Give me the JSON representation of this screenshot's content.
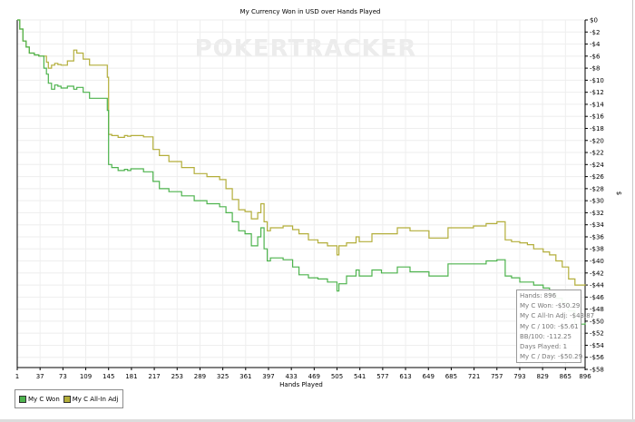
{
  "chart_data": {
    "type": "line",
    "title": "My Currency Won in USD over Hands Played",
    "xlabel": "Hands Played",
    "ylabel": "$",
    "watermark": "POKERTRACKER",
    "xlim": [
      1,
      896
    ],
    "ylim": [
      -59,
      0
    ],
    "x_ticks": [
      1,
      37,
      73,
      109,
      145,
      181,
      217,
      253,
      289,
      325,
      361,
      397,
      433,
      469,
      505,
      541,
      577,
      613,
      649,
      685,
      721,
      757,
      793,
      829,
      865,
      896
    ],
    "y_ticks": [
      0,
      -2,
      -4,
      -6,
      -8,
      -10,
      -12,
      -14,
      -16,
      -18,
      -20,
      -22,
      -24,
      -26,
      -28,
      -30,
      -32,
      -34,
      -36,
      -38,
      -40,
      -42,
      -44,
      -46,
      -48,
      -50,
      -52,
      -54,
      -56,
      -58
    ],
    "y_tick_prefix": "$",
    "grid": true,
    "legend_position": "bottom-left",
    "series": [
      {
        "name": "My C Won",
        "color": "#4db34d",
        "x": [
          1,
          5,
          10,
          15,
          20,
          28,
          35,
          43,
          47,
          50,
          55,
          60,
          65,
          70,
          80,
          90,
          95,
          105,
          115,
          143,
          145,
          150,
          160,
          170,
          175,
          180,
          200,
          215,
          225,
          240,
          260,
          280,
          300,
          320,
          330,
          340,
          350,
          360,
          370,
          380,
          385,
          390,
          395,
          400,
          420,
          435,
          445,
          460,
          475,
          490,
          505,
          508,
          520,
          535,
          540,
          560,
          575,
          600,
          620,
          650,
          680,
          700,
          720,
          740,
          757,
          770,
          780,
          793,
          805,
          815,
          830,
          840,
          850,
          860,
          870,
          880,
          896
        ],
        "y": [
          0,
          -1.5,
          -3.5,
          -4.5,
          -5.5,
          -5.8,
          -6,
          -8,
          -9,
          -10.5,
          -11.5,
          -10.8,
          -11,
          -11.3,
          -11,
          -11.5,
          -11.2,
          -12,
          -13,
          -15,
          -24,
          -24.5,
          -25,
          -24.8,
          -25,
          -24.7,
          -25.2,
          -26.8,
          -28,
          -28.5,
          -29.2,
          -30,
          -30.5,
          -31,
          -32,
          -33.5,
          -35,
          -35.5,
          -37.5,
          -36,
          -34.5,
          -38,
          -40,
          -39.5,
          -39.8,
          -41,
          -42.3,
          -42.8,
          -43,
          -43.5,
          -45,
          -43.8,
          -42.5,
          -41.5,
          -42.5,
          -41.5,
          -42,
          -41,
          -41.8,
          -42.5,
          -40.5,
          -40.5,
          -40.5,
          -40,
          -39.8,
          -42.5,
          -42.8,
          -43.5,
          -43.5,
          -44,
          -44.5,
          -45.5,
          -46.2,
          -47,
          -48.3,
          -50.5,
          -50.29
        ]
      },
      {
        "name": "My C All-In Adj",
        "color": "#b3ae3a",
        "x": [
          1,
          5,
          10,
          15,
          20,
          28,
          35,
          43,
          47,
          50,
          55,
          60,
          65,
          70,
          80,
          90,
          95,
          105,
          115,
          143,
          145,
          150,
          160,
          170,
          175,
          180,
          200,
          215,
          225,
          240,
          260,
          280,
          300,
          320,
          330,
          340,
          350,
          360,
          370,
          380,
          385,
          390,
          395,
          400,
          420,
          435,
          445,
          460,
          475,
          490,
          505,
          508,
          520,
          535,
          540,
          560,
          575,
          600,
          620,
          650,
          680,
          700,
          720,
          740,
          757,
          770,
          780,
          793,
          805,
          815,
          830,
          840,
          850,
          860,
          870,
          880,
          896
        ],
        "y": [
          0,
          -1.5,
          -3.5,
          -4.5,
          -5.5,
          -5.8,
          -6,
          -6,
          -7,
          -8,
          -7.5,
          -7.2,
          -7.4,
          -7.5,
          -6.8,
          -5,
          -5.5,
          -6.5,
          -7.5,
          -9.5,
          -19,
          -19.2,
          -19.5,
          -19.2,
          -19.3,
          -19.2,
          -19.4,
          -21.5,
          -22.5,
          -23.5,
          -24.5,
          -25.5,
          -26,
          -26.5,
          -28,
          -29.8,
          -31.5,
          -31.8,
          -33,
          -32,
          -30.5,
          -33.5,
          -35,
          -34.5,
          -34.2,
          -34.8,
          -35.5,
          -36.5,
          -37,
          -37.5,
          -39,
          -37.5,
          -37,
          -36,
          -36.8,
          -35.5,
          -35.5,
          -34.5,
          -35,
          -36.2,
          -34.5,
          -34.5,
          -34.2,
          -33.8,
          -33.5,
          -36.5,
          -36.8,
          -37,
          -37.3,
          -38,
          -38.5,
          -39,
          -40,
          -41,
          -43,
          -44,
          -43.87
        ]
      }
    ]
  },
  "legend": [
    {
      "label": "My C Won",
      "color": "#4db34d"
    },
    {
      "label": "My C All-In Adj",
      "color": "#b3ae3a"
    }
  ],
  "stats": [
    "Hands: 896",
    "My C Won: -$50.29",
    "My C All-In Adj: -$43.87",
    "My C / 100: -$5.61",
    "BB/100: -112.25",
    "Days Played: 1",
    "My C / Day: -$50.29"
  ]
}
